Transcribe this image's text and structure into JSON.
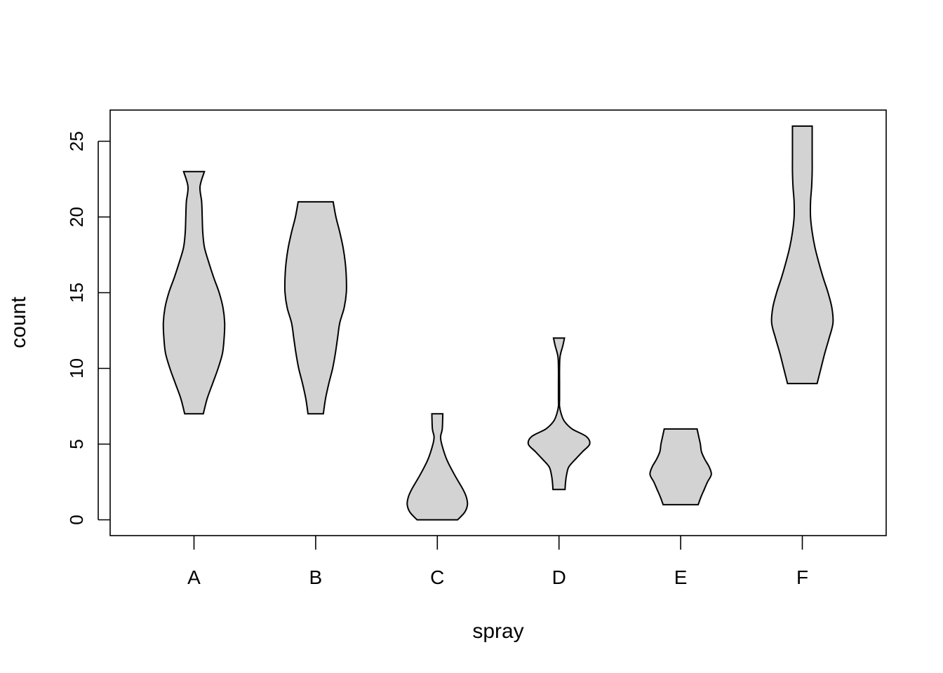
{
  "chart_data": {
    "type": "violin",
    "title": "",
    "xlabel": "spray",
    "ylabel": "count",
    "categories": [
      "A",
      "B",
      "C",
      "D",
      "E",
      "F"
    ],
    "ylim": [
      -1,
      27
    ],
    "yticks": [
      0,
      5,
      10,
      15,
      20,
      25
    ],
    "fill_color": "#d3d3d3",
    "stroke_color": "#000000",
    "grid": false,
    "legend": "none",
    "violins": [
      {
        "category": "A",
        "min": 7,
        "max": 23,
        "profile": [
          [
            7,
            0.17
          ],
          [
            8,
            0.24
          ],
          [
            9,
            0.34
          ],
          [
            10,
            0.44
          ],
          [
            11,
            0.52
          ],
          [
            12,
            0.55
          ],
          [
            13,
            0.56
          ],
          [
            14,
            0.53
          ],
          [
            15,
            0.46
          ],
          [
            16,
            0.36
          ],
          [
            17,
            0.27
          ],
          [
            18,
            0.19
          ],
          [
            19,
            0.16
          ],
          [
            20,
            0.15
          ],
          [
            21,
            0.14
          ],
          [
            22,
            0.11
          ],
          [
            23,
            0.19
          ]
        ]
      },
      {
        "category": "B",
        "min": 7,
        "max": 21,
        "profile": [
          [
            7,
            0.14
          ],
          [
            8,
            0.18
          ],
          [
            9,
            0.24
          ],
          [
            10,
            0.31
          ],
          [
            11,
            0.36
          ],
          [
            12,
            0.4
          ],
          [
            13,
            0.44
          ],
          [
            14,
            0.52
          ],
          [
            15,
            0.56
          ],
          [
            16,
            0.56
          ],
          [
            17,
            0.54
          ],
          [
            18,
            0.5
          ],
          [
            19,
            0.44
          ],
          [
            20,
            0.37
          ],
          [
            21,
            0.32
          ]
        ]
      },
      {
        "category": "C",
        "min": 0,
        "max": 7,
        "profile": [
          [
            0,
            0.37
          ],
          [
            0.5,
            0.5
          ],
          [
            1,
            0.55
          ],
          [
            1.5,
            0.53
          ],
          [
            2,
            0.47
          ],
          [
            3,
            0.31
          ],
          [
            4,
            0.17
          ],
          [
            5,
            0.08
          ],
          [
            5.5,
            0.06
          ],
          [
            6,
            0.09
          ],
          [
            7,
            0.1
          ]
        ]
      },
      {
        "category": "D",
        "min": 2,
        "max": 12,
        "profile": [
          [
            2,
            0.11
          ],
          [
            2.5,
            0.12
          ],
          [
            3,
            0.14
          ],
          [
            3.5,
            0.18
          ],
          [
            4,
            0.3
          ],
          [
            4.5,
            0.43
          ],
          [
            5,
            0.56
          ],
          [
            5.5,
            0.5
          ],
          [
            6,
            0.24
          ],
          [
            6.5,
            0.1
          ],
          [
            7,
            0.04
          ],
          [
            7.5,
            0.01
          ],
          [
            8,
            0.01
          ],
          [
            9,
            0.01
          ],
          [
            10,
            0.01
          ],
          [
            10.8,
            0.02
          ],
          [
            11.5,
            0.07
          ],
          [
            12,
            0.1
          ]
        ]
      },
      {
        "category": "E",
        "min": 1,
        "max": 6,
        "profile": [
          [
            1,
            0.32
          ],
          [
            1.5,
            0.37
          ],
          [
            2,
            0.43
          ],
          [
            2.5,
            0.49
          ],
          [
            3,
            0.56
          ],
          [
            3.5,
            0.52
          ],
          [
            4,
            0.44
          ],
          [
            4.5,
            0.38
          ],
          [
            5,
            0.36
          ],
          [
            5.5,
            0.33
          ],
          [
            6,
            0.3
          ]
        ]
      },
      {
        "category": "F",
        "min": 9,
        "max": 26,
        "profile": [
          [
            9,
            0.27
          ],
          [
            10,
            0.34
          ],
          [
            11,
            0.41
          ],
          [
            12,
            0.49
          ],
          [
            13,
            0.56
          ],
          [
            14,
            0.54
          ],
          [
            15,
            0.47
          ],
          [
            16,
            0.38
          ],
          [
            17,
            0.3
          ],
          [
            18,
            0.23
          ],
          [
            19,
            0.18
          ],
          [
            20,
            0.15
          ],
          [
            21,
            0.15
          ],
          [
            22,
            0.17
          ],
          [
            23,
            0.18
          ],
          [
            24,
            0.18
          ],
          [
            25,
            0.18
          ],
          [
            26,
            0.18
          ]
        ]
      }
    ]
  }
}
